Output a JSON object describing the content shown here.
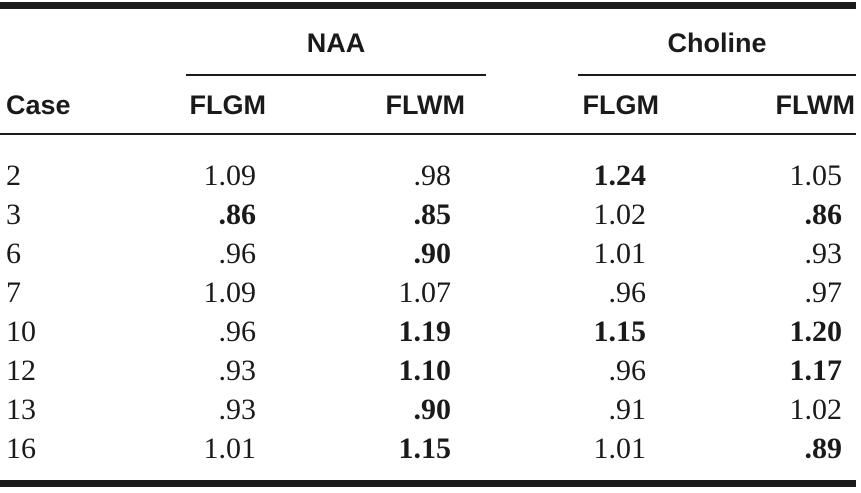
{
  "table": {
    "groups": {
      "naa": "NAA",
      "choline": "Choline"
    },
    "headers": {
      "case": "Case",
      "naa_flgm": "FLGM",
      "naa_flwm": "FLWM",
      "choline_flgm": "FLGM",
      "choline_flwm": "FLWM"
    },
    "rows": [
      {
        "case": "2",
        "naa_flgm": "1.09",
        "naa_flwm": ".98",
        "choline_flgm": "1.24",
        "choline_flwm": "1.05"
      },
      {
        "case": "3",
        "naa_flgm": ".86",
        "naa_flwm": ".85",
        "choline_flgm": "1.02",
        "choline_flwm": ".86"
      },
      {
        "case": "6",
        "naa_flgm": ".96",
        "naa_flwm": ".90",
        "choline_flgm": "1.01",
        "choline_flwm": ".93"
      },
      {
        "case": "7",
        "naa_flgm": "1.09",
        "naa_flwm": "1.07",
        "choline_flgm": ".96",
        "choline_flwm": ".97"
      },
      {
        "case": "10",
        "naa_flgm": ".96",
        "naa_flwm": "1.19",
        "choline_flgm": "1.15",
        "choline_flwm": "1.20"
      },
      {
        "case": "12",
        "naa_flgm": ".93",
        "naa_flwm": "1.10",
        "choline_flgm": ".96",
        "choline_flwm": "1.17"
      },
      {
        "case": "13",
        "naa_flgm": ".93",
        "naa_flwm": ".90",
        "choline_flgm": ".91",
        "choline_flwm": "1.02"
      },
      {
        "case": "16",
        "naa_flgm": "1.01",
        "naa_flwm": "1.15",
        "choline_flgm": "1.01",
        "choline_flwm": ".89"
      }
    ]
  }
}
